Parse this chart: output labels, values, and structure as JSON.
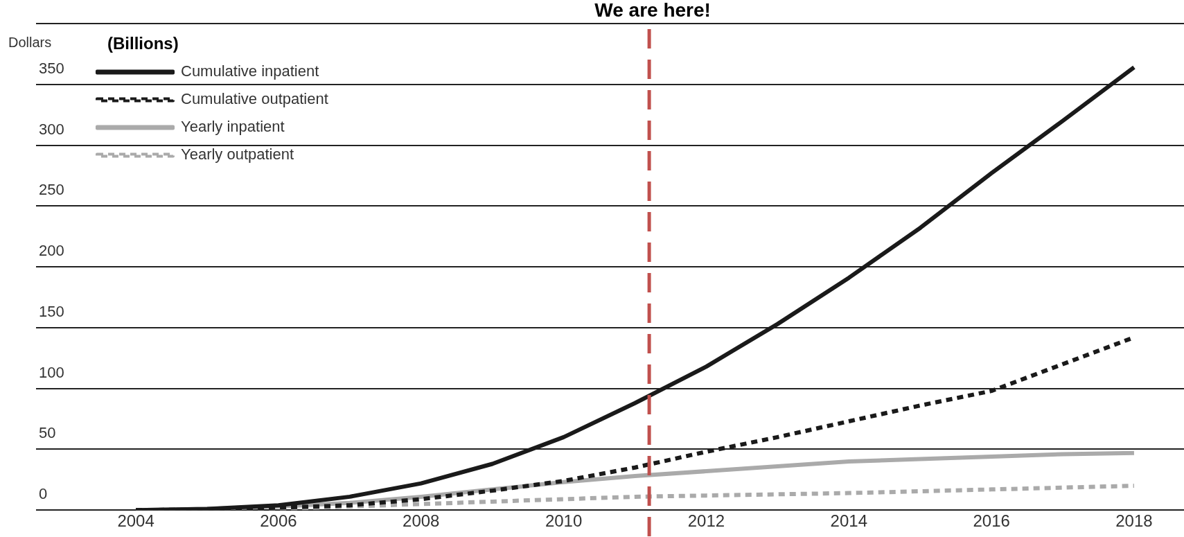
{
  "chart_data": {
    "type": "line",
    "ylabel": "Dollars",
    "annotations": [
      "(Billions)"
    ],
    "x": [
      2004,
      2005,
      2006,
      2007,
      2008,
      2009,
      2010,
      2011,
      2012,
      2013,
      2014,
      2015,
      2016,
      2017,
      2018
    ],
    "series": [
      {
        "name": "Cumulative inpatient",
        "color": "#1a1a1a",
        "line_style": "solid",
        "values": [
          0,
          1,
          4,
          11,
          22,
          38,
          60,
          88,
          118,
          153,
          191,
          232,
          277,
          320,
          364
        ]
      },
      {
        "name": "Cumulative outpatient",
        "color": "#1a1a1a",
        "line_style": "dashed",
        "values": [
          0,
          0.5,
          2,
          4,
          9,
          16,
          24,
          35,
          48,
          60,
          73,
          86,
          98,
          120,
          142
        ]
      },
      {
        "name": "Yearly inpatient",
        "color": "#aaaaaa",
        "line_style": "solid",
        "values": [
          0,
          1,
          3,
          6,
          11,
          17,
          23,
          28,
          32,
          36,
          40,
          42,
          44,
          46,
          47
        ]
      },
      {
        "name": "Yearly outpatient",
        "color": "#aaaaaa",
        "line_style": "dashed",
        "values": [
          0,
          0.5,
          1,
          3,
          5,
          7,
          9,
          11,
          12,
          13,
          14,
          15.5,
          17,
          18.5,
          20
        ]
      }
    ],
    "xlim": [
      2002.6,
      2018.7
    ],
    "xticks": [
      2004,
      2006,
      2008,
      2010,
      2012,
      2014,
      2016,
      2018
    ],
    "ylim": [
      0,
      400
    ],
    "yticks": [
      0,
      50,
      100,
      150,
      200,
      250,
      300,
      350,
      {
        "value": 400,
        "label": null
      }
    ],
    "grid": "y",
    "legend": "top left",
    "marker": "none",
    "ref_lines": [
      {
        "axis": "x",
        "value": 2011.2,
        "label": "We are here!",
        "color": "#c0504d",
        "line_style": "dashed"
      }
    ]
  }
}
